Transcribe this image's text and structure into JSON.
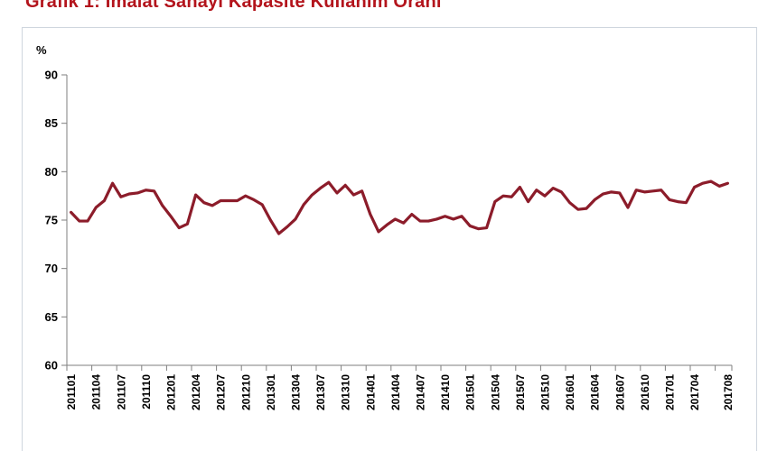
{
  "chart_data": {
    "type": "line",
    "title": "Grafik 1: İmalat Sanayi Kapasite Kullanım Oranı",
    "ylabel": "%",
    "xlabel": "",
    "ylim": [
      60,
      90
    ],
    "yticks": [
      60,
      65,
      70,
      75,
      80,
      85,
      90
    ],
    "grid": false,
    "legend": "none",
    "line_color": "#8c1c2a",
    "xticks": [
      "201101",
      "201104",
      "201107",
      "201110",
      "201201",
      "201204",
      "201207",
      "201210",
      "201301",
      "201304",
      "201307",
      "201310",
      "201401",
      "201404",
      "201407",
      "201410",
      "201501",
      "201504",
      "201507",
      "201510",
      "201601",
      "201604",
      "201607",
      "201610",
      "201701",
      "201704",
      "201708"
    ],
    "x": [
      "201101",
      "201102",
      "201103",
      "201104",
      "201105",
      "201106",
      "201107",
      "201108",
      "201109",
      "201110",
      "201111",
      "201112",
      "201201",
      "201202",
      "201203",
      "201204",
      "201205",
      "201206",
      "201207",
      "201208",
      "201209",
      "201210",
      "201211",
      "201212",
      "201301",
      "201302",
      "201303",
      "201304",
      "201305",
      "201306",
      "201307",
      "201308",
      "201309",
      "201310",
      "201311",
      "201312",
      "201401",
      "201402",
      "201403",
      "201404",
      "201405",
      "201406",
      "201407",
      "201408",
      "201409",
      "201410",
      "201411",
      "201412",
      "201501",
      "201502",
      "201503",
      "201504",
      "201505",
      "201506",
      "201507",
      "201508",
      "201509",
      "201510",
      "201511",
      "201512",
      "201601",
      "201602",
      "201603",
      "201604",
      "201605",
      "201606",
      "201607",
      "201608",
      "201609",
      "201610",
      "201611",
      "201612",
      "201701",
      "201702",
      "201703",
      "201704",
      "201705",
      "201706",
      "201707",
      "201708"
    ],
    "values": [
      75.8,
      74.9,
      74.9,
      76.3,
      77.0,
      78.8,
      77.4,
      77.7,
      77.8,
      78.1,
      78.0,
      76.5,
      75.4,
      74.2,
      74.6,
      77.6,
      76.8,
      76.5,
      77.0,
      77.0,
      77.0,
      77.5,
      77.1,
      76.6,
      75.0,
      73.6,
      74.3,
      75.1,
      76.6,
      77.6,
      78.3,
      78.9,
      77.8,
      78.6,
      77.6,
      78.0,
      75.6,
      73.8,
      74.5,
      75.1,
      74.7,
      75.6,
      74.9,
      74.9,
      75.1,
      75.4,
      75.1,
      75.4,
      74.4,
      74.1,
      74.2,
      76.9,
      77.5,
      77.4,
      78.4,
      76.9,
      78.1,
      77.5,
      78.3,
      77.9,
      76.8,
      76.1,
      76.2,
      77.1,
      77.7,
      77.9,
      77.8,
      76.3,
      78.1,
      77.9,
      78.0,
      78.1,
      77.1,
      76.9,
      76.8,
      78.4,
      78.8,
      79.0,
      78.5,
      78.8
    ]
  }
}
